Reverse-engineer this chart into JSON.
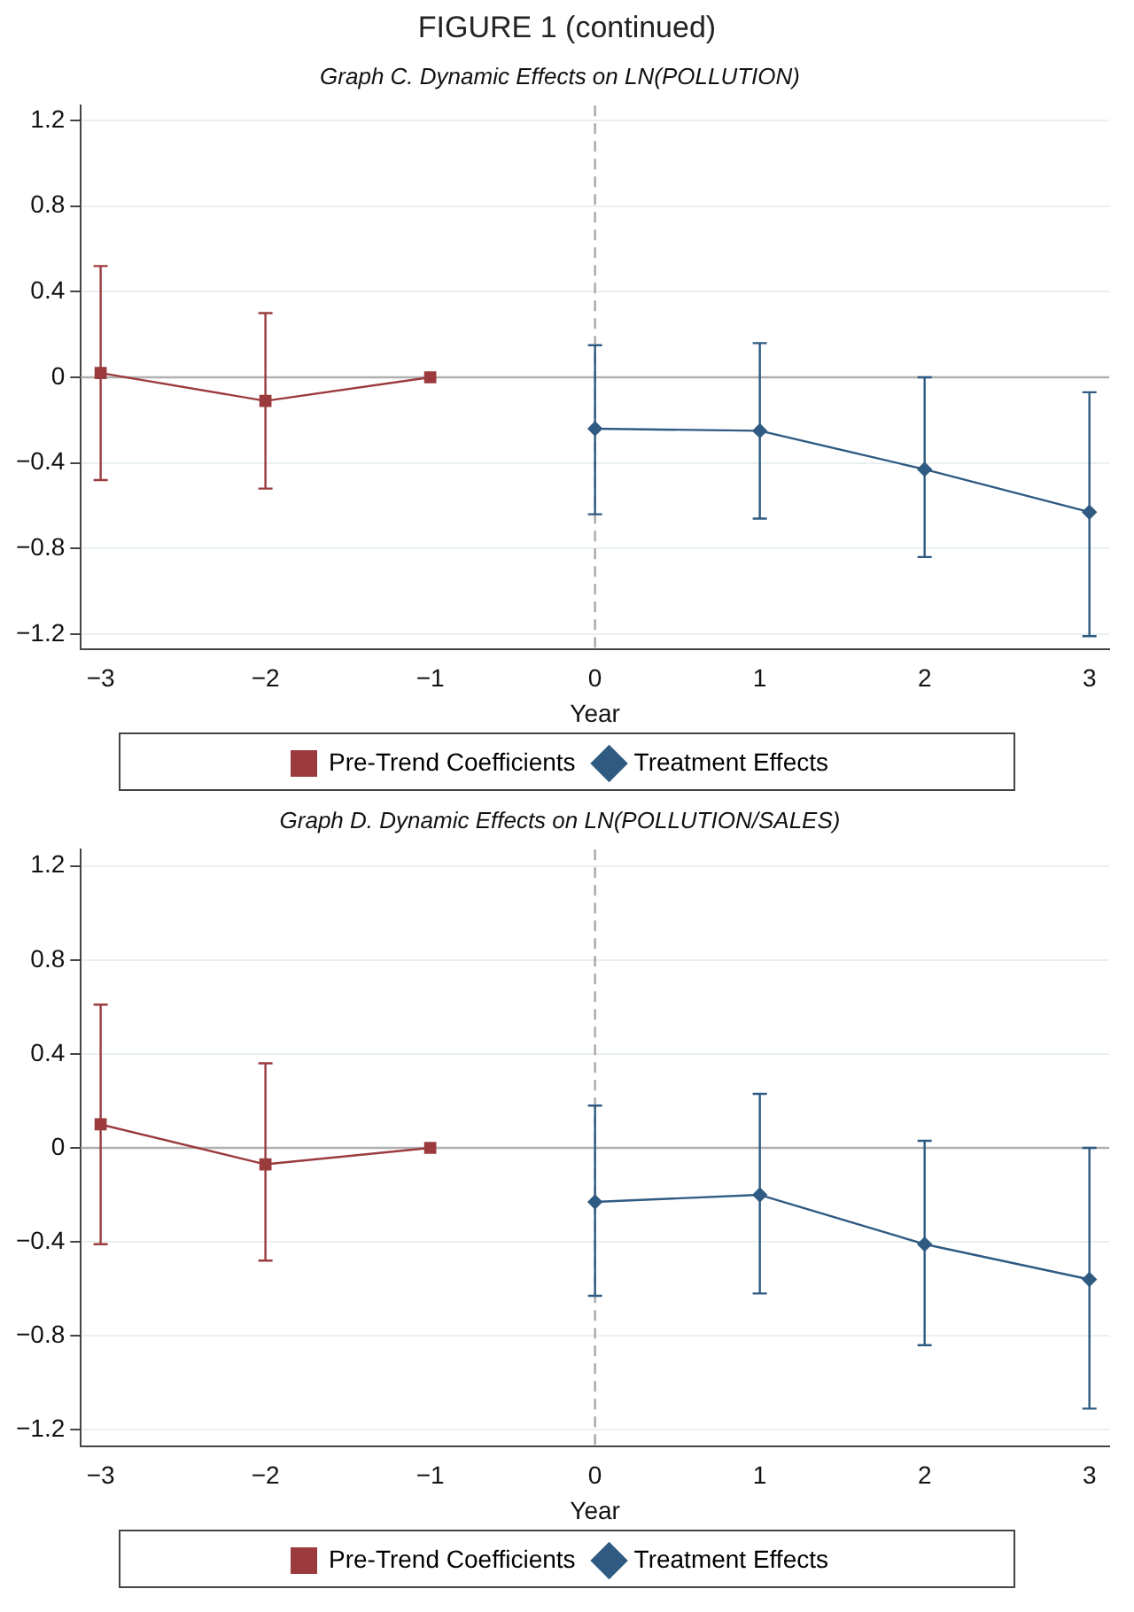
{
  "chart_data": [
    {
      "type": "line",
      "annotations": [
        "FIGURE 1 (continued)"
      ],
      "title": "Graph C. Dynamic Effects on LN(POLLUTION)",
      "xlabel": "Year",
      "xlim": [
        -3.12,
        3.12
      ],
      "xticks": [
        {
          "value": -3,
          "label": "−3"
        },
        {
          "value": -2,
          "label": "−2"
        },
        {
          "value": -1,
          "label": "−1"
        },
        0,
        1,
        2,
        3
      ],
      "ylim": [
        -1.27,
        1.27
      ],
      "yticks": [
        {
          "value": -1.2,
          "label": "−1.2"
        },
        {
          "value": -0.8,
          "label": "−0.8"
        },
        {
          "value": -0.4,
          "label": "−0.4"
        },
        0,
        0.4,
        0.8,
        1.2
      ],
      "grid": "y",
      "legend": "bottom",
      "ref_lines": [
        {
          "axis": "y",
          "value": 0,
          "color": "#b0b0b0",
          "line_style": "solid"
        },
        {
          "axis": "x",
          "value": 0,
          "color": "#a8a8a8",
          "line_style": "dashed"
        }
      ],
      "series": [
        {
          "name": "Pre-Trend Coefficients",
          "color": "#9b3b3e",
          "marker": "square",
          "x": [
            -3,
            -2,
            -1
          ],
          "values": [
            0.02,
            -0.11,
            0
          ],
          "errors": [
            [
              -0.48,
              0.52
            ],
            [
              -0.52,
              0.3
            ],
            null
          ]
        },
        {
          "name": "Treatment Effects",
          "color": "#2f5b82",
          "marker": "diamond",
          "x": [
            0,
            1,
            2,
            3
          ],
          "values": [
            -0.24,
            -0.25,
            -0.43,
            -0.63
          ],
          "errors": [
            [
              -0.64,
              0.15
            ],
            [
              -0.66,
              0.16
            ],
            [
              -0.84,
              0.0
            ],
            [
              -1.21,
              -0.07
            ]
          ]
        }
      ]
    },
    {
      "type": "line",
      "title": "Graph D. Dynamic Effects on LN(POLLUTION/SALES)",
      "xlabel": "Year",
      "xlim": [
        -3.12,
        3.12
      ],
      "xticks": [
        {
          "value": -3,
          "label": "−3"
        },
        {
          "value": -2,
          "label": "−2"
        },
        {
          "value": -1,
          "label": "−1"
        },
        0,
        1,
        2,
        3
      ],
      "ylim": [
        -1.27,
        1.27
      ],
      "yticks": [
        {
          "value": -1.2,
          "label": "−1.2"
        },
        {
          "value": -0.8,
          "label": "−0.8"
        },
        {
          "value": -0.4,
          "label": "−0.4"
        },
        0,
        0.4,
        0.8,
        1.2
      ],
      "grid": "y",
      "legend": "bottom",
      "ref_lines": [
        {
          "axis": "y",
          "value": 0,
          "color": "#b0b0b0",
          "line_style": "solid"
        },
        {
          "axis": "x",
          "value": 0,
          "color": "#a8a8a8",
          "line_style": "dashed"
        }
      ],
      "series": [
        {
          "name": "Pre-Trend Coefficients",
          "color": "#9b3b3e",
          "marker": "square",
          "x": [
            -3,
            -2,
            -1
          ],
          "values": [
            0.1,
            -0.07,
            0
          ],
          "errors": [
            [
              -0.41,
              0.61
            ],
            [
              -0.48,
              0.36
            ],
            null
          ]
        },
        {
          "name": "Treatment Effects",
          "color": "#2f5b82",
          "marker": "diamond",
          "x": [
            0,
            1,
            2,
            3
          ],
          "values": [
            -0.23,
            -0.2,
            -0.41,
            -0.56
          ],
          "errors": [
            [
              -0.63,
              0.18
            ],
            [
              -0.62,
              0.23
            ],
            [
              -0.84,
              0.03
            ],
            [
              -1.11,
              0.0
            ]
          ]
        }
      ]
    }
  ]
}
